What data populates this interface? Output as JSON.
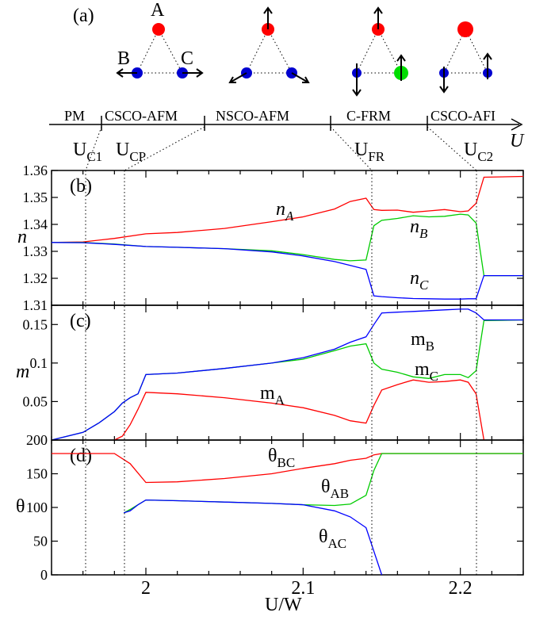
{
  "panel_a": {
    "label": "(a)",
    "site_labels": {
      "A": "A",
      "B": "B",
      "C": "C"
    },
    "phases": [
      "PM",
      "CSCO-AFM",
      "NSCO-AFM",
      "C-FRM",
      "CSCO-AFI"
    ],
    "axis_symbol": "U",
    "critical_labels": [
      {
        "main": "U",
        "sub": "C1"
      },
      {
        "main": "U",
        "sub": "CP"
      },
      {
        "main": "U",
        "sub": "FR"
      },
      {
        "main": "U",
        "sub": "C2"
      }
    ],
    "colors": {
      "site_a": "#ff0000",
      "site_bc": "#0000d0",
      "site_green": "#00dd00"
    }
  },
  "chart_data": [
    {
      "type": "line",
      "panel": "(b)",
      "ylabel": "n",
      "xlim": [
        1.94,
        2.24
      ],
      "ylim": [
        1.31,
        1.36
      ],
      "yticks": [
        "1.31",
        "1.32",
        "1.33",
        "1.34",
        "1.35",
        "1.36"
      ],
      "annotations": [
        {
          "main": "n",
          "sub": "A"
        },
        {
          "main": "n",
          "sub": "B"
        },
        {
          "main": "n",
          "sub": "C"
        }
      ],
      "series": [
        {
          "color": "#ff0000",
          "x": [
            1.94,
            1.96,
            1.98,
            2.0,
            2.02,
            2.05,
            2.08,
            2.1,
            2.12,
            2.13,
            2.14,
            2.145,
            2.15,
            2.16,
            2.17,
            2.18,
            2.19,
            2.2,
            2.205,
            2.21,
            2.215,
            2.24
          ],
          "y": [
            1.3333,
            1.3335,
            1.3348,
            1.3365,
            1.337,
            1.3385,
            1.341,
            1.3428,
            1.3457,
            1.3485,
            1.3497,
            1.3455,
            1.3452,
            1.3453,
            1.3445,
            1.345,
            1.3455,
            1.3447,
            1.345,
            1.3478,
            1.3575,
            1.3578
          ]
        },
        {
          "color": "#00cc00",
          "x": [
            1.94,
            1.96,
            1.98,
            2.0,
            2.02,
            2.05,
            2.08,
            2.1,
            2.12,
            2.13,
            2.14,
            2.145,
            2.15,
            2.16,
            2.17,
            2.18,
            2.19,
            2.2,
            2.205,
            2.21,
            2.215,
            2.24
          ],
          "y": [
            1.3333,
            1.3333,
            1.3327,
            1.3318,
            1.3315,
            1.331,
            1.3302,
            1.3288,
            1.327,
            1.3265,
            1.3268,
            1.3395,
            1.3415,
            1.3422,
            1.3432,
            1.3428,
            1.343,
            1.3438,
            1.3435,
            1.3405,
            1.321,
            1.321
          ]
        },
        {
          "color": "#0000ff",
          "x": [
            1.94,
            1.96,
            1.98,
            2.0,
            2.02,
            2.05,
            2.08,
            2.1,
            2.12,
            2.13,
            2.14,
            2.145,
            2.15,
            2.16,
            2.17,
            2.18,
            2.19,
            2.2,
            2.205,
            2.21,
            2.215,
            2.24
          ],
          "y": [
            1.3333,
            1.3332,
            1.3326,
            1.3318,
            1.3315,
            1.331,
            1.3298,
            1.3283,
            1.3262,
            1.3248,
            1.3233,
            1.3135,
            1.3132,
            1.3128,
            1.3125,
            1.3124,
            1.3123,
            1.3123,
            1.3124,
            1.3124,
            1.321,
            1.321
          ]
        }
      ]
    },
    {
      "type": "line",
      "panel": "(c)",
      "ylabel": "m",
      "xlim": [
        1.94,
        2.24
      ],
      "ylim": [
        0,
        0.175
      ],
      "yticks": [
        "0.05",
        "0.1",
        "0.15"
      ],
      "annotations": [
        {
          "main": "m",
          "sub": "B"
        },
        {
          "main": "m",
          "sub": "C"
        },
        {
          "main": "m",
          "sub": "A"
        }
      ],
      "series": [
        {
          "color": "#ff0000",
          "x": [
            1.98,
            1.985,
            1.99,
            1.995,
            2.0,
            2.02,
            2.05,
            2.08,
            2.1,
            2.12,
            2.13,
            2.14,
            2.145,
            2.15,
            2.16,
            2.17,
            2.18,
            2.19,
            2.2,
            2.205,
            2.21,
            2.215
          ],
          "y": [
            0,
            0.005,
            0.02,
            0.04,
            0.062,
            0.06,
            0.055,
            0.048,
            0.042,
            0.032,
            0.025,
            0.022,
            0.045,
            0.065,
            0.072,
            0.078,
            0.075,
            0.076,
            0.078,
            0.075,
            0.06,
            0
          ]
        },
        {
          "color": "#00cc00",
          "x": [
            1.94,
            1.96,
            1.97,
            1.98,
            1.985,
            1.99,
            1.995,
            2.0,
            2.02,
            2.05,
            2.08,
            2.1,
            2.12,
            2.13,
            2.14,
            2.145,
            2.15,
            2.16,
            2.17,
            2.18,
            2.19,
            2.2,
            2.205,
            2.21,
            2.215,
            2.24
          ],
          "y": [
            0,
            0.01,
            0.022,
            0.037,
            0.048,
            0.055,
            0.06,
            0.085,
            0.087,
            0.093,
            0.1,
            0.105,
            0.116,
            0.122,
            0.125,
            0.1,
            0.092,
            0.088,
            0.082,
            0.08,
            0.085,
            0.085,
            0.081,
            0.09,
            0.155,
            0.156
          ]
        },
        {
          "color": "#0000ff",
          "x": [
            1.94,
            1.96,
            1.97,
            1.98,
            1.985,
            1.99,
            1.995,
            2.0,
            2.02,
            2.05,
            2.08,
            2.1,
            2.12,
            2.13,
            2.14,
            2.145,
            2.15,
            2.16,
            2.17,
            2.18,
            2.19,
            2.2,
            2.205,
            2.21,
            2.215,
            2.24
          ],
          "y": [
            0,
            0.01,
            0.022,
            0.037,
            0.048,
            0.055,
            0.06,
            0.085,
            0.087,
            0.093,
            0.1,
            0.107,
            0.118,
            0.127,
            0.134,
            0.15,
            0.165,
            0.166,
            0.167,
            0.168,
            0.169,
            0.17,
            0.17,
            0.165,
            0.156,
            0.156
          ]
        }
      ]
    },
    {
      "type": "line",
      "panel": "(d)",
      "ylabel": "θ",
      "xlabel": "U/W",
      "xlim": [
        1.94,
        2.24
      ],
      "ylim": [
        0,
        200
      ],
      "xticks": [
        "2",
        "2.1",
        "2.2"
      ],
      "yticks": [
        "0",
        "50",
        "100",
        "150",
        "200"
      ],
      "annotations": [
        {
          "main": "θ",
          "sub": "BC"
        },
        {
          "main": "θ",
          "sub": "AB"
        },
        {
          "main": "θ",
          "sub": "AC"
        }
      ],
      "series": [
        {
          "color": "#ff0000",
          "x": [
            1.94,
            1.98,
            1.99,
            2.0,
            2.02,
            2.05,
            2.08,
            2.1,
            2.12,
            2.13,
            2.14,
            2.145,
            2.15,
            2.24
          ],
          "y": [
            180,
            180,
            165,
            137,
            138,
            143,
            150,
            158,
            165,
            170,
            173,
            178,
            180,
            180
          ]
        },
        {
          "color": "#00cc00",
          "x": [
            1.986,
            1.99,
            1.995,
            2.0,
            2.02,
            2.05,
            2.08,
            2.1,
            2.12,
            2.13,
            2.14,
            2.145,
            2.15,
            2.24
          ],
          "y": [
            92,
            97,
            104,
            111,
            110,
            108,
            106,
            104,
            103,
            105,
            118,
            155,
            180,
            180
          ]
        },
        {
          "color": "#0000ff",
          "x": [
            1.986,
            1.99,
            1.995,
            2.0,
            2.02,
            2.05,
            2.08,
            2.1,
            2.12,
            2.13,
            2.14,
            2.145,
            2.15
          ],
          "y": [
            92,
            95,
            104,
            111,
            110,
            108,
            106,
            104,
            95,
            86,
            70,
            35,
            0
          ]
        }
      ]
    }
  ]
}
